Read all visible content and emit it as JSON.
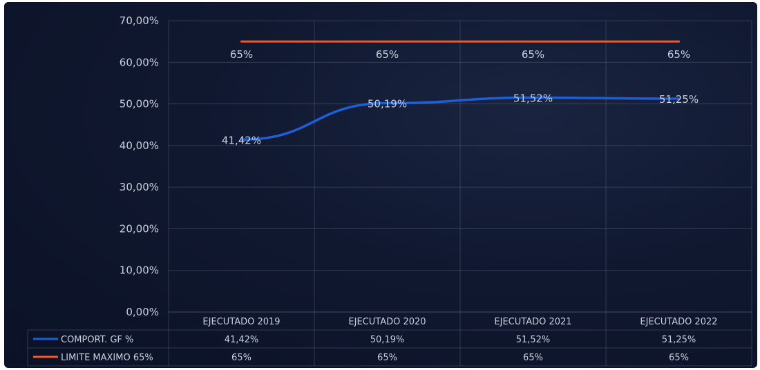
{
  "chart_data": {
    "type": "line",
    "categories": [
      "EJECUTADO 2019",
      "EJECUTADO 2020",
      "EJECUTADO 2021",
      "EJECUTADO 2022"
    ],
    "series": [
      {
        "name": "COMPORT. GF %",
        "values": [
          41.42,
          50.19,
          51.52,
          51.25
        ],
        "labels": [
          "41,42%",
          "50,19%",
          "51,52%",
          "51,25%"
        ],
        "color": "#1f5fd6"
      },
      {
        "name": "LIMITE MAXIMO 65%",
        "values": [
          65,
          65,
          65,
          65
        ],
        "labels": [
          "65%",
          "65%",
          "65%",
          "65%"
        ],
        "color": "#f05a24"
      }
    ],
    "yticks": [
      "0,00%",
      "10,00%",
      "20,00%",
      "30,00%",
      "40,00%",
      "50,00%",
      "60,00%",
      "70,00%"
    ],
    "ylim": [
      0,
      70
    ],
    "grid": true,
    "legend": "data-table"
  }
}
